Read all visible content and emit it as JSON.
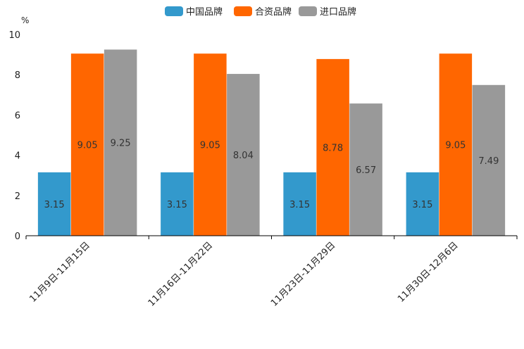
{
  "chart_data": {
    "type": "bar",
    "unit": "%",
    "categories": [
      "11月9日-11月15日",
      "11月16日-11月22日",
      "11月23日-11月29日",
      "11月30日-12月6日"
    ],
    "series": [
      {
        "name": "中国品牌",
        "color": "#3399cc",
        "values": [
          3.15,
          3.15,
          3.15,
          3.15
        ],
        "labels": [
          "3.15",
          "3.15",
          "3.15",
          "3.15"
        ]
      },
      {
        "name": "合资品牌",
        "color": "#ff6600",
        "values": [
          9.05,
          9.05,
          8.78,
          9.05
        ],
        "labels": [
          "9.05",
          "9.05",
          "8.78",
          "9.05"
        ]
      },
      {
        "name": "进口品牌",
        "color": "#999999",
        "values": [
          9.25,
          8.04,
          6.57,
          7.49
        ],
        "labels": [
          "9.25",
          "8.04",
          "6.57",
          "7.49"
        ]
      }
    ],
    "ylim": [
      0,
      10
    ],
    "yticks": [
      "0",
      "2",
      "4",
      "6",
      "8",
      "10"
    ],
    "legend_position": "top-center",
    "grid": false
  }
}
